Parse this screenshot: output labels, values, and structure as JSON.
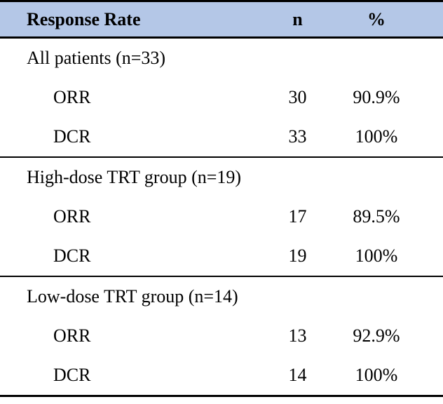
{
  "table": {
    "header": {
      "response_rate": "Response Rate",
      "n": "n",
      "percent": "%"
    },
    "sections": [
      {
        "label": "All patients (n=33)",
        "rows": [
          {
            "label": "ORR",
            "n": "30",
            "percent": "90.9%"
          },
          {
            "label": "DCR",
            "n": "33",
            "percent": "100%"
          }
        ]
      },
      {
        "label": "High-dose TRT group (n=19)",
        "rows": [
          {
            "label": "ORR",
            "n": "17",
            "percent": "89.5%"
          },
          {
            "label": "DCR",
            "n": "19",
            "percent": "100%"
          }
        ]
      },
      {
        "label": "Low-dose TRT group (n=14)",
        "rows": [
          {
            "label": "ORR",
            "n": "13",
            "percent": "92.9%"
          },
          {
            "label": "DCR",
            "n": "14",
            "percent": "100%"
          }
        ]
      }
    ],
    "colors": {
      "header_bg": "#b4c7e7",
      "border": "#000000",
      "text": "#000000"
    }
  }
}
